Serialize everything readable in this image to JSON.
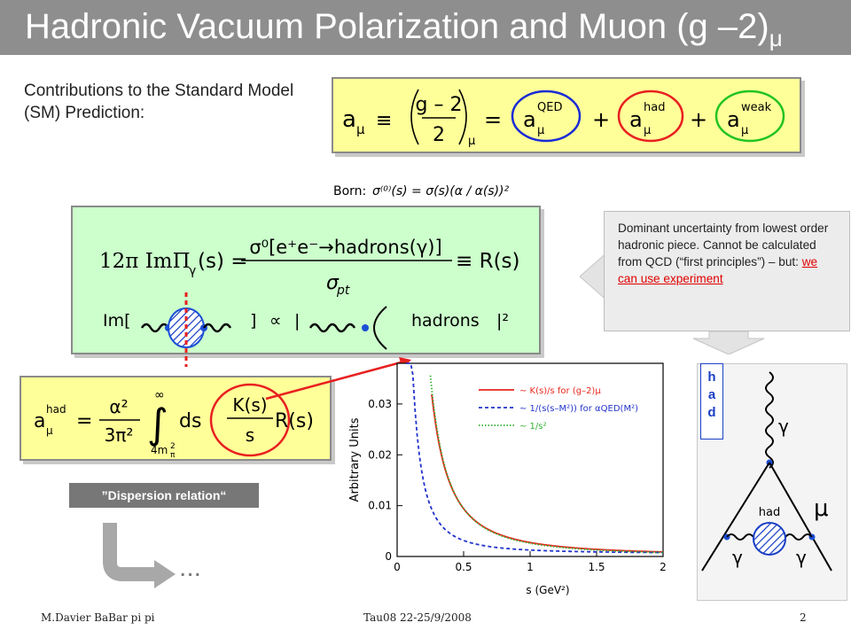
{
  "title": {
    "main": "Hadronic Vacuum Polarization and Muon (g –2)",
    "sub": "μ"
  },
  "contributions_label": "Contributions to the Standard Model (SM) Prediction:",
  "sm_equation": {
    "lhs": "a",
    "lhs_sub": "μ",
    "equiv": "≡",
    "frac_num": "g – 2",
    "frac_den": "2",
    "frac_sub": "μ",
    "equals": "=",
    "qed": "QED",
    "had": "had",
    "weak": "weak",
    "plus": "+",
    "term_a": "a",
    "term_sub": "μ"
  },
  "born": {
    "label": "Born:",
    "formula": "σ⁽⁰⁾(s) = σ(s)(α / α(s))²"
  },
  "optical": {
    "lhs": "12π ImΠ",
    "lhs_sub": "γ",
    "lhs_arg": "(s) =",
    "num": "σ⁰[e⁺e⁻→hadrons(γ)]",
    "den": "σ",
    "den_sub": "pt",
    "rhs": "≡ R(s)",
    "im_label": "Im[",
    "bracket_close": "]",
    "propto": "∝",
    "bar": "|",
    "hadrons": "hadrons",
    "abs_sq": "|²"
  },
  "dominant": {
    "text": "Dominant uncertainty from lowest order hadronic piece. Cannot be calculated from QCD (“first principles”) – but:",
    "highlight": "we can use experiment"
  },
  "dispersion_equation": {
    "lhs": "a",
    "lhs_sup": "had",
    "lhs_sub": "μ",
    "equals": "=",
    "frac_num": "α²",
    "frac_den": "3π²",
    "int_upper": "∞",
    "int_lower": "4m",
    "int_lower_sub": "π",
    "int_lower_sup": "2",
    "ds": "ds",
    "k_num": "K(s)",
    "k_den": "s",
    "r": "R(s)"
  },
  "dispersion_label": "”Dispersion relation“",
  "ellipsis": "...",
  "feynman": {
    "had_vertical": [
      "h",
      "a",
      "d"
    ],
    "gamma_top": "γ",
    "mu": "μ",
    "had_blob": "had",
    "gamma_left": "γ",
    "gamma_right": "γ"
  },
  "chart_data": {
    "type": "line",
    "ylabel": "Arbitrary Units",
    "xlabel": "s   (GeV²)",
    "xlim": [
      0,
      2
    ],
    "ylim": [
      0,
      0.038
    ],
    "x_ticks": [
      "0",
      "0.5",
      "1",
      "1.5",
      "2"
    ],
    "y_ticks": [
      "0",
      "0.01",
      "0.02",
      "0.03"
    ],
    "legend_position": "top-right",
    "series": [
      {
        "name": "~ K(s)/s for (g–2)μ",
        "color": "#e8281e",
        "dash": "solid"
      },
      {
        "name": "~ 1/(s(s–M²)) for αQED(M²)",
        "color": "#2233cc",
        "dash": "dashed"
      },
      {
        "name": "~ 1/s²",
        "color": "#33b033",
        "dash": "dotted"
      }
    ]
  },
  "footer": {
    "author": "M.Davier    BaBar pi pi",
    "event": "Tau08  22-25/9/2008",
    "page": "2"
  }
}
